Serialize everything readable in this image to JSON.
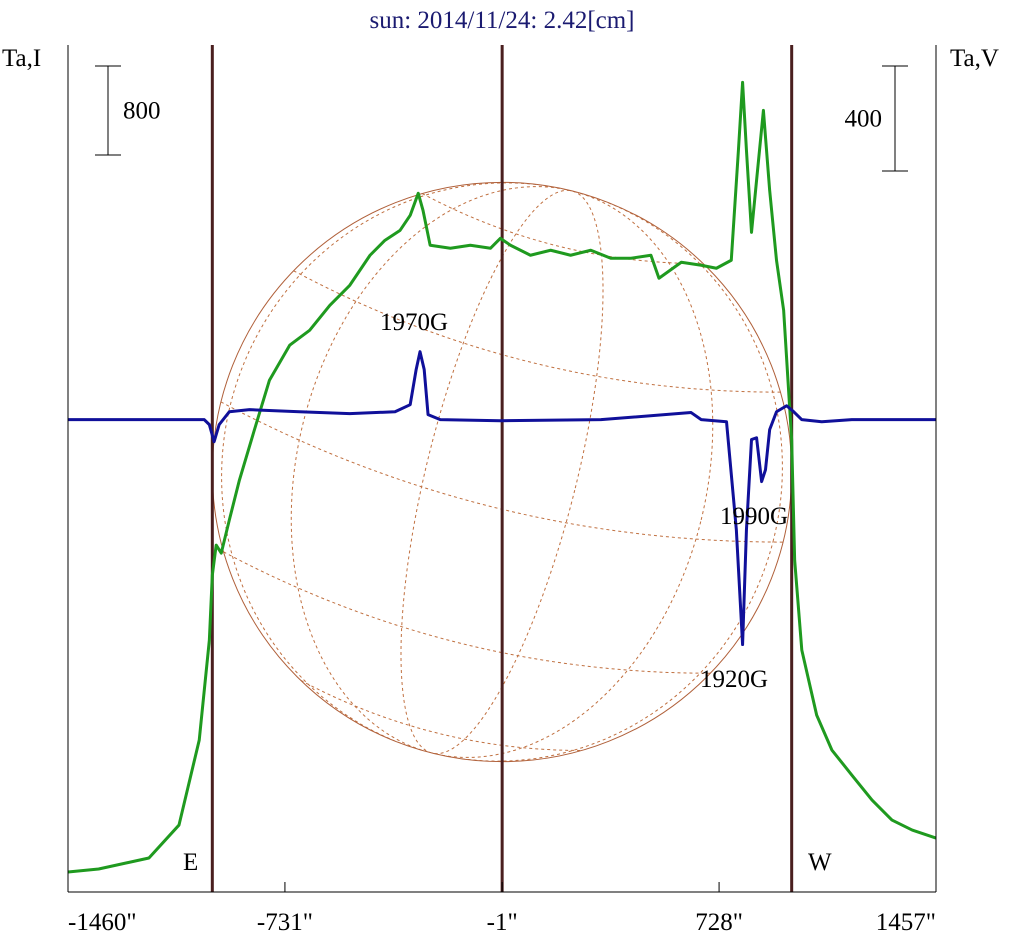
{
  "chart_data": {
    "type": "line",
    "title": "sun: 2014/11/24: 2.42[cm]",
    "ylabel": "Ta,I",
    "y2label": "Ta,V",
    "xlim": [
      -1460,
      1457
    ],
    "xticks": [
      {
        "value": -1460,
        "label": "-1460\""
      },
      {
        "value": -731,
        "label": "-731\""
      },
      {
        "value": -1,
        "label": "-1\""
      },
      {
        "value": 728,
        "label": "728\""
      },
      {
        "value": 1457,
        "label": "1457\""
      }
    ],
    "ylim": [
      0,
      7600
    ],
    "y2lim": [
      -1800,
      1420
    ],
    "limb_lines": [
      -975,
      -1,
      972
    ],
    "limb_labels": [
      "E",
      "W"
    ],
    "scale_bars": [
      {
        "value": 800,
        "axis": "y"
      },
      {
        "value": 400,
        "axis": "y2"
      }
    ],
    "annotations": [
      "1970G",
      "1990G",
      "1920G"
    ],
    "series": [
      {
        "name": "I",
        "color": "#1f9a1f",
        "axis": "y",
        "x": [
          -1460,
          -1357,
          -1188,
          -1087,
          -1019,
          -985,
          -975,
          -962,
          -945,
          -918,
          -884,
          -834,
          -783,
          -715,
          -648,
          -580,
          -513,
          -445,
          -395,
          -344,
          -310,
          -283,
          -267,
          -243,
          -175,
          -108,
          -40,
          -7,
          27,
          94,
          162,
          229,
          297,
          364,
          432,
          499,
          526,
          601,
          668,
          719,
          769,
          793,
          807,
          820,
          837,
          854,
          877,
          898,
          921,
          945,
          972,
          982,
          1006,
          1056,
          1107,
          1174,
          1242,
          1309,
          1377,
          1457
        ],
        "values": [
          180,
          207,
          306,
          602,
          1366,
          2265,
          2850,
          3120,
          3048,
          3344,
          3704,
          4153,
          4603,
          4918,
          5052,
          5277,
          5457,
          5727,
          5861,
          5951,
          6086,
          6284,
          6131,
          5817,
          5790,
          5817,
          5790,
          5879,
          5817,
          5727,
          5772,
          5727,
          5772,
          5700,
          5700,
          5727,
          5520,
          5664,
          5637,
          5610,
          5682,
          6671,
          7282,
          6671,
          5933,
          6401,
          7030,
          6311,
          5682,
          5232,
          4063,
          2985,
          2176,
          1591,
          1277,
          1052,
          827,
          647,
          557,
          485
        ]
      },
      {
        "name": "V",
        "color": "#10109a",
        "axis": "y2",
        "x": [
          -1460,
          -1002,
          -985,
          -969,
          -952,
          -918,
          -850,
          -682,
          -513,
          -361,
          -310,
          -290,
          -277,
          -263,
          -250,
          -209,
          -7,
          331,
          634,
          668,
          753,
          786,
          807,
          820,
          837,
          854,
          871,
          884,
          898,
          921,
          955,
          979,
          1006,
          1073,
          1174,
          1343,
          1457
        ],
        "values": [
          0,
          0,
          -19,
          -84,
          -19,
          30,
          38,
          30,
          23,
          30,
          57,
          191,
          259,
          191,
          19,
          0,
          -4,
          0,
          27,
          0,
          -8,
          -419,
          -857,
          -419,
          -76,
          -69,
          -236,
          -191,
          -38,
          30,
          53,
          30,
          0,
          -8,
          0,
          0,
          0
        ]
      }
    ]
  }
}
